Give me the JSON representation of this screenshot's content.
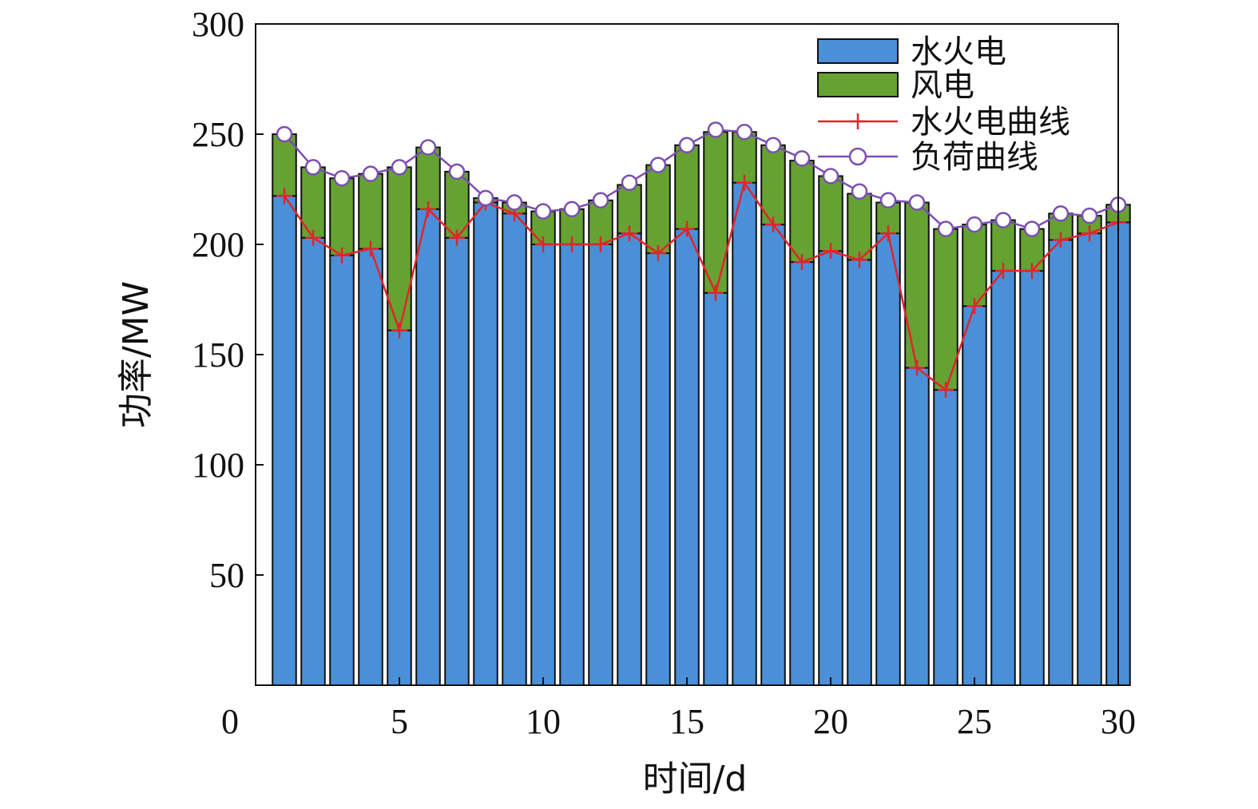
{
  "chart_data": {
    "type": "bar",
    "stacked": true,
    "xlabel": "时间/d",
    "ylabel": "功率/MW",
    "xlim": [
      0,
      30
    ],
    "ylim": [
      0,
      300
    ],
    "xticks": [
      "0",
      "5",
      "10",
      "15",
      "20",
      "25",
      "30"
    ],
    "yticks": [
      "50",
      "100",
      "150",
      "200",
      "250",
      "300"
    ],
    "grid": false,
    "legend_position": "top-right",
    "x": [
      1,
      2,
      3,
      4,
      5,
      6,
      7,
      8,
      9,
      10,
      11,
      12,
      13,
      14,
      15,
      16,
      17,
      18,
      19,
      20,
      21,
      22,
      23,
      24,
      25,
      26,
      27,
      28,
      29,
      30
    ],
    "series": [
      {
        "name": "水火电",
        "kind": "bar",
        "color": "#4a90d9",
        "values": [
          222,
          203,
          195,
          198,
          161,
          216,
          203,
          219,
          214,
          200,
          200,
          200,
          205,
          196,
          207,
          178,
          228,
          209,
          192,
          197,
          193,
          205,
          144,
          134,
          172,
          188,
          188,
          202,
          205,
          210
        ]
      },
      {
        "name": "风电",
        "kind": "bar",
        "color": "#66a232",
        "values": [
          28,
          32,
          35,
          34,
          74,
          28,
          30,
          2,
          5,
          15,
          16,
          20,
          22,
          40,
          38,
          73,
          23,
          36,
          46,
          34,
          30,
          14,
          75,
          73,
          37,
          23,
          19,
          12,
          8,
          8
        ]
      },
      {
        "name": "水火电曲线",
        "kind": "line",
        "marker": "plus",
        "color": "#e0252b",
        "values": [
          222,
          203,
          195,
          198,
          161,
          216,
          203,
          219,
          214,
          200,
          200,
          200,
          205,
          196,
          207,
          178,
          228,
          209,
          192,
          197,
          193,
          205,
          144,
          134,
          172,
          188,
          188,
          202,
          205,
          210
        ]
      },
      {
        "name": "负荷曲线",
        "kind": "line",
        "marker": "circle",
        "color": "#7b4fb0",
        "values": [
          250,
          235,
          230,
          232,
          235,
          244,
          233,
          221,
          219,
          215,
          216,
          220,
          228,
          236,
          245,
          252,
          251,
          245,
          239,
          231,
          224,
          220,
          219,
          207,
          209,
          211,
          207,
          214,
          213,
          218
        ]
      }
    ]
  }
}
